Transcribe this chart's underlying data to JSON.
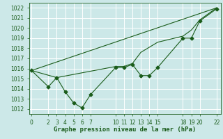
{
  "background_color": "#cce8e8",
  "grid_color": "#b0d8d8",
  "line_color": "#1a5c1a",
  "ylim": [
    1011.5,
    1022.5
  ],
  "xlim": [
    -0.3,
    22.5
  ],
  "yticks": [
    1012,
    1013,
    1014,
    1015,
    1016,
    1017,
    1018,
    1019,
    1020,
    1021,
    1022
  ],
  "xticks": [
    0,
    2,
    3,
    4,
    5,
    6,
    7,
    10,
    11,
    12,
    13,
    14,
    15,
    18,
    19,
    20,
    22
  ],
  "xlabel": "Graphe pression niveau de la mer (hPa)",
  "line1_x": [
    0,
    2,
    3,
    4,
    5,
    6,
    7,
    10,
    11,
    12,
    13,
    14,
    15,
    18,
    19,
    20,
    22
  ],
  "line1_y": [
    1015.8,
    1014.2,
    1015.1,
    1013.7,
    1012.6,
    1012.1,
    1013.4,
    1016.1,
    1016.1,
    1016.4,
    1015.3,
    1015.3,
    1016.1,
    1019.0,
    1019.0,
    1020.7,
    1021.9
  ],
  "line2_x": [
    0,
    3,
    10,
    11,
    12,
    13,
    14,
    15,
    18,
    19,
    20,
    22
  ],
  "line2_y": [
    1015.8,
    1015.1,
    1016.2,
    1016.2,
    1016.5,
    1017.6,
    1018.1,
    1018.6,
    1019.2,
    1019.8,
    1020.8,
    1022.0
  ],
  "line3_x": [
    0,
    22
  ],
  "line3_y": [
    1015.8,
    1022.0
  ],
  "tick_fontsize": 5.5,
  "xlabel_fontsize": 6.5
}
